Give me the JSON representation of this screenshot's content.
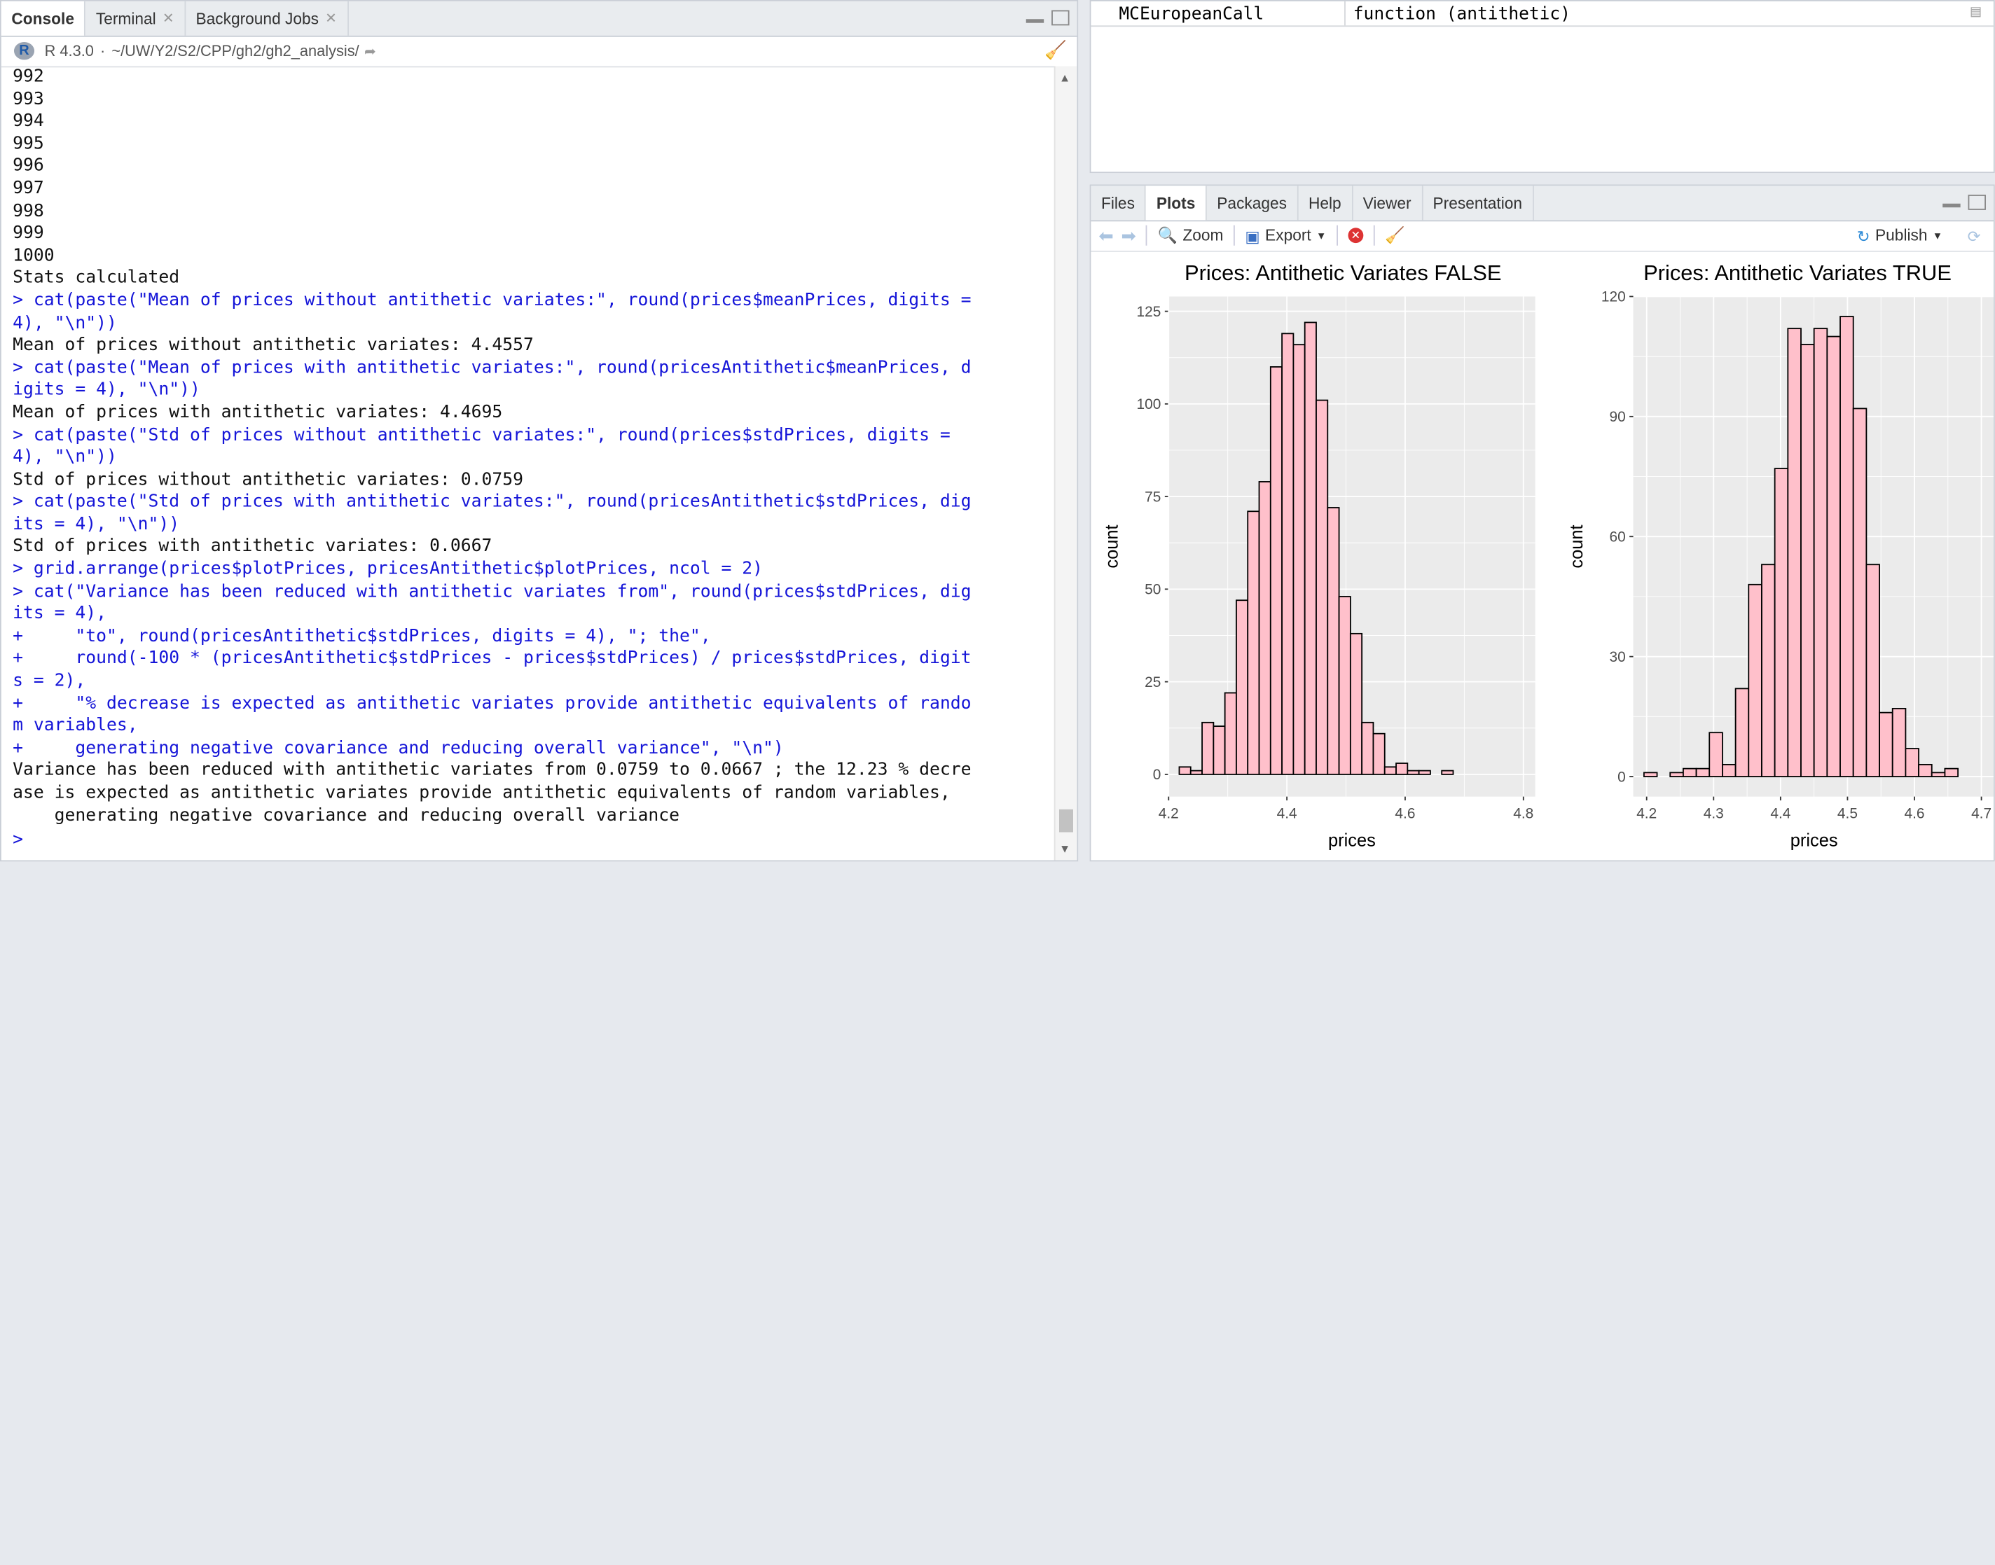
{
  "console_pane": {
    "tabs": [
      {
        "label": "Console"
      },
      {
        "label": "Terminal"
      },
      {
        "label": "Background Jobs"
      }
    ],
    "r_version": "R 4.3.0",
    "path": "~/UW/Y2/S2/CPP/gh2/gh2_analysis/",
    "lines": [
      {
        "kind": "out",
        "text": "992"
      },
      {
        "kind": "out",
        "text": "993"
      },
      {
        "kind": "out",
        "text": "994"
      },
      {
        "kind": "out",
        "text": "995"
      },
      {
        "kind": "out",
        "text": "996"
      },
      {
        "kind": "out",
        "text": "997"
      },
      {
        "kind": "out",
        "text": "998"
      },
      {
        "kind": "out",
        "text": "999"
      },
      {
        "kind": "out",
        "text": "1000"
      },
      {
        "kind": "out",
        "text": "Stats calculated"
      },
      {
        "kind": "cmd",
        "text": "> cat(paste(\"Mean of prices without antithetic variates:\", round(prices$meanPrices, digits ="
      },
      {
        "kind": "cmd",
        "text": "4), \"\\n\"))"
      },
      {
        "kind": "out",
        "text": "Mean of prices without antithetic variates: 4.4557"
      },
      {
        "kind": "cmd",
        "text": "> cat(paste(\"Mean of prices with antithetic variates:\", round(pricesAntithetic$meanPrices, d"
      },
      {
        "kind": "cmd",
        "text": "igits = 4), \"\\n\"))"
      },
      {
        "kind": "out",
        "text": "Mean of prices with antithetic variates: 4.4695"
      },
      {
        "kind": "cmd",
        "text": "> cat(paste(\"Std of prices without antithetic variates:\", round(prices$stdPrices, digits ="
      },
      {
        "kind": "cmd",
        "text": "4), \"\\n\"))"
      },
      {
        "kind": "out",
        "text": "Std of prices without antithetic variates: 0.0759"
      },
      {
        "kind": "cmd",
        "text": "> cat(paste(\"Std of prices with antithetic variates:\", round(pricesAntithetic$stdPrices, dig"
      },
      {
        "kind": "cmd",
        "text": "its = 4), \"\\n\"))"
      },
      {
        "kind": "out",
        "text": "Std of prices with antithetic variates: 0.0667"
      },
      {
        "kind": "cmd",
        "text": "> grid.arrange(prices$plotPrices, pricesAntithetic$plotPrices, ncol = 2)"
      },
      {
        "kind": "cmd",
        "text": "> cat(\"Variance has been reduced with antithetic variates from\", round(prices$stdPrices, dig"
      },
      {
        "kind": "cmd",
        "text": "its = 4),"
      },
      {
        "kind": "cmd",
        "text": "+     \"to\", round(pricesAntithetic$stdPrices, digits = 4), \"; the\","
      },
      {
        "kind": "cmd",
        "text": "+     round(-100 * (pricesAntithetic$stdPrices - prices$stdPrices) / prices$stdPrices, digit"
      },
      {
        "kind": "cmd",
        "text": "s = 2),"
      },
      {
        "kind": "cmd",
        "text": "+     \"% decrease is expected as antithetic variates provide antithetic equivalents of rando"
      },
      {
        "kind": "cmd",
        "text": "m variables,"
      },
      {
        "kind": "cmd",
        "text": "+     generating negative covariance and reducing overall variance\", \"\\n\")"
      },
      {
        "kind": "out",
        "text": "Variance has been reduced with antithetic variates from 0.0759 to 0.0667 ; the 12.23 % decre"
      },
      {
        "kind": "out",
        "text": "ase is expected as antithetic variates provide antithetic equivalents of random variables,"
      },
      {
        "kind": "out",
        "text": "    generating negative covariance and reducing overall variance"
      }
    ],
    "prompt": ">"
  },
  "env_pane": {
    "row_name": "MCEuropeanCall",
    "row_value": "function (antithetic)"
  },
  "plots_pane": {
    "tabs": [
      {
        "label": "Files"
      },
      {
        "label": "Plots"
      },
      {
        "label": "Packages"
      },
      {
        "label": "Help"
      },
      {
        "label": "Viewer"
      },
      {
        "label": "Presentation"
      }
    ],
    "zoom_label": "Zoom",
    "export_label": "Export",
    "publish_label": "Publish",
    "colors": {
      "bar_fill": "#ffc0cb",
      "bar_stroke": "#000000",
      "panel_bg": "#ebebeb",
      "grid": "#ffffff"
    }
  },
  "chart_data": [
    {
      "type": "bar",
      "title": "Prices: Antithetic Variates FALSE",
      "xlabel": "prices",
      "ylabel": "count",
      "xlim": [
        4.2,
        4.82
      ],
      "ylim": [
        -6,
        129
      ],
      "xticks": [
        4.2,
        4.4,
        4.6,
        4.8
      ],
      "yticks": [
        0,
        25,
        50,
        75,
        100,
        125
      ],
      "bin_start": 4.218,
      "bin_width": 0.0193,
      "values": [
        2,
        1,
        14,
        13,
        22,
        47,
        71,
        79,
        110,
        119,
        116,
        122,
        101,
        72,
        48,
        38,
        14,
        11,
        2,
        3,
        1,
        1,
        0,
        1
      ]
    },
    {
      "type": "bar",
      "title": "Prices: Antithetic Variates TRUE",
      "xlabel": "prices",
      "ylabel": "count",
      "xlim": [
        4.18,
        4.72
      ],
      "ylim": [
        -5,
        120
      ],
      "xticks": [
        4.2,
        4.3,
        4.4,
        4.5,
        4.6,
        4.7
      ],
      "yticks": [
        0,
        30,
        60,
        90,
        120
      ],
      "bin_start": 4.196,
      "bin_width": 0.01954,
      "values": [
        1,
        0,
        1,
        2,
        2,
        11,
        3,
        22,
        48,
        53,
        77,
        112,
        108,
        112,
        110,
        115,
        92,
        53,
        16,
        17,
        7,
        3,
        1,
        2
      ]
    }
  ]
}
